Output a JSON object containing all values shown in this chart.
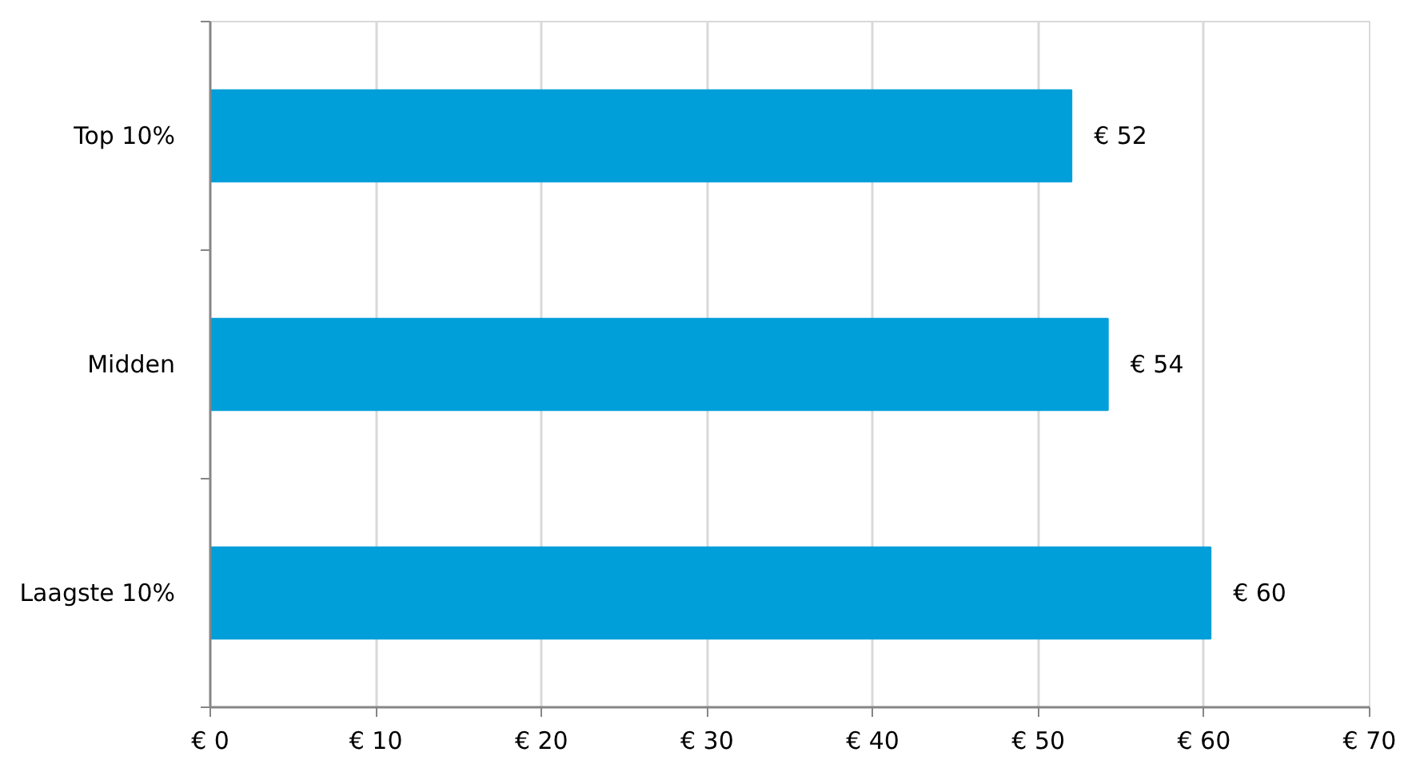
{
  "chart_data": {
    "type": "bar",
    "orientation": "horizontal",
    "categories": [
      "Top 10%",
      "Midden",
      "Laagste 10%"
    ],
    "values": [
      52,
      54.2,
      60.4
    ],
    "color": "#009fd9",
    "value_labels": [
      "€ 52",
      "€ 54",
      "€ 60"
    ],
    "xlim": [
      0,
      70
    ],
    "xticks": [
      {
        "value": 0,
        "label": "€ 0"
      },
      {
        "value": 10,
        "label": "€ 10"
      },
      {
        "value": 20,
        "label": "€ 20"
      },
      {
        "value": 30,
        "label": "€ 30"
      },
      {
        "value": 40,
        "label": "€ 40"
      },
      {
        "value": 50,
        "label": "€ 50"
      },
      {
        "value": 60,
        "label": "€ 60"
      },
      {
        "value": 70,
        "label": "€ 70"
      }
    ],
    "grid": "x"
  }
}
